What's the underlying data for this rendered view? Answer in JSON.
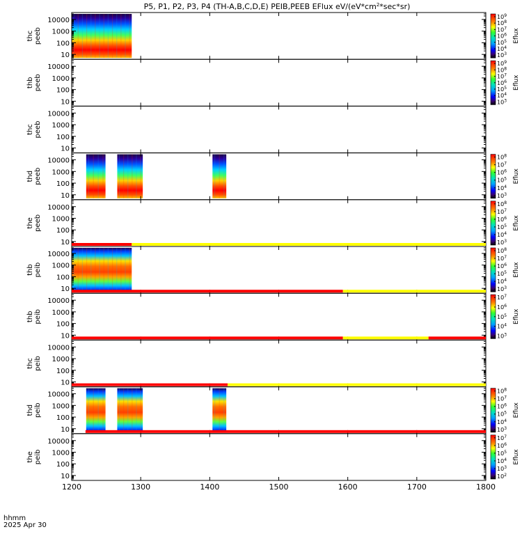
{
  "chart_data": {
    "type": "heatmap",
    "title": "P5, P1, P2, P3, P4 (TH-A,B,C,D,E) PEIB,PEEB EFlux eV/(eV*cm",
    "title_sup": "2",
    "title_tail": "*sec*sr)",
    "x_unit_label": "hhmm",
    "date_label": "2025 Apr 30",
    "xlim": [
      1200,
      1800
    ],
    "x_ticks": [
      "1200",
      "1300",
      "1400",
      "1500",
      "1600",
      "1700",
      "1800"
    ],
    "y_ticks": [
      "10",
      "100",
      "1000",
      "10000"
    ],
    "ylim": [
      5,
      30000
    ],
    "colorbar_label": "Eflux",
    "panels": [
      {
        "label": [
          "thc",
          "peeb"
        ],
        "colorbar": [
          "10",
          "10",
          "10",
          "10",
          "10",
          "10",
          "10"
        ],
        "cbar_exps": [
          "3",
          "4",
          "5",
          "6",
          "7",
          "8",
          "9"
        ],
        "intervals": [
          [
            1200,
            1287
          ]
        ],
        "style": "electron"
      },
      {
        "label": [
          "thb",
          "peeb"
        ],
        "colorbar": [
          "10",
          "10",
          "10",
          "10",
          "10",
          "10",
          "10"
        ],
        "cbar_exps": [
          "3",
          "4",
          "5",
          "6",
          "7",
          "8",
          "9"
        ],
        "intervals": [],
        "style": "none"
      },
      {
        "label": [
          "thc",
          "peeb"
        ],
        "colorbar": [],
        "cbar_exps": [],
        "intervals": [],
        "style": "none"
      },
      {
        "label": [
          "thd",
          "peeb"
        ],
        "colorbar": [
          "10",
          "10",
          "10",
          "10",
          "10",
          "10"
        ],
        "cbar_exps": [
          "3",
          "4",
          "5",
          "6",
          "7",
          "8"
        ],
        "intervals": [
          [
            1221,
            1249
          ],
          [
            1266,
            1303
          ],
          [
            1404,
            1424
          ]
        ],
        "style": "electron"
      },
      {
        "label": [
          "the",
          "peeb"
        ],
        "colorbar": [
          "10",
          "10",
          "10",
          "10",
          "10",
          "10"
        ],
        "cbar_exps": [
          "3",
          "4",
          "5",
          "6",
          "7",
          "8"
        ],
        "intervals": [],
        "style": "none"
      },
      {
        "label": [
          "thb",
          "peib"
        ],
        "colorbar": [
          "10",
          "10",
          "10",
          "10",
          "10",
          "10"
        ],
        "cbar_exps": [
          "3",
          "4",
          "5",
          "6",
          "7",
          "8"
        ],
        "intervals": [
          [
            1200,
            1287
          ]
        ],
        "style": "ion"
      },
      {
        "label": [
          "thb",
          "peib"
        ],
        "colorbar": [
          "10",
          "10",
          "10",
          "10",
          "10"
        ],
        "cbar_exps": [
          "3",
          "4",
          "5",
          "6",
          "7"
        ],
        "intervals": [],
        "style": "none"
      },
      {
        "label": [
          "thc",
          "peib"
        ],
        "colorbar": [],
        "cbar_exps": [],
        "intervals": [],
        "style": "none"
      },
      {
        "label": [
          "thd",
          "peib"
        ],
        "colorbar": [
          "10",
          "10",
          "10",
          "10",
          "10",
          "10"
        ],
        "cbar_exps": [
          "3",
          "4",
          "5",
          "6",
          "7",
          "8"
        ],
        "intervals": [
          [
            1221,
            1249
          ],
          [
            1266,
            1303
          ],
          [
            1404,
            1424
          ]
        ],
        "style": "ion"
      },
      {
        "label": [
          "the",
          "peib"
        ],
        "colorbar": [
          "10",
          "10",
          "10",
          "10",
          "10",
          "10"
        ],
        "cbar_exps": [
          "2",
          "3",
          "4",
          "5",
          "6",
          "7"
        ],
        "intervals": [],
        "style": "none"
      }
    ],
    "mode_bars": [
      {
        "after_panel": 4,
        "segments": [
          [
            1200,
            1287,
            "#ff0000"
          ],
          [
            1287,
            1800,
            "#ffff00"
          ]
        ]
      },
      {
        "after_panel": 5,
        "segments": [
          [
            1200,
            1593,
            "#ff0000"
          ],
          [
            1593,
            1800,
            "#ffff00"
          ]
        ]
      },
      {
        "after_panel": 6,
        "segments": [
          [
            1200,
            1593,
            "#ff0000"
          ],
          [
            1593,
            1717,
            "#ffff00"
          ],
          [
            1717,
            1800,
            "#ff0000"
          ]
        ]
      },
      {
        "after_panel": 7,
        "segments": [
          [
            1200,
            1426,
            "#ff0000"
          ],
          [
            1426,
            1800,
            "#ffff00"
          ]
        ]
      },
      {
        "after_panel": 8,
        "segments": [
          [
            1220,
            1800,
            "#ff0000"
          ]
        ]
      }
    ]
  }
}
